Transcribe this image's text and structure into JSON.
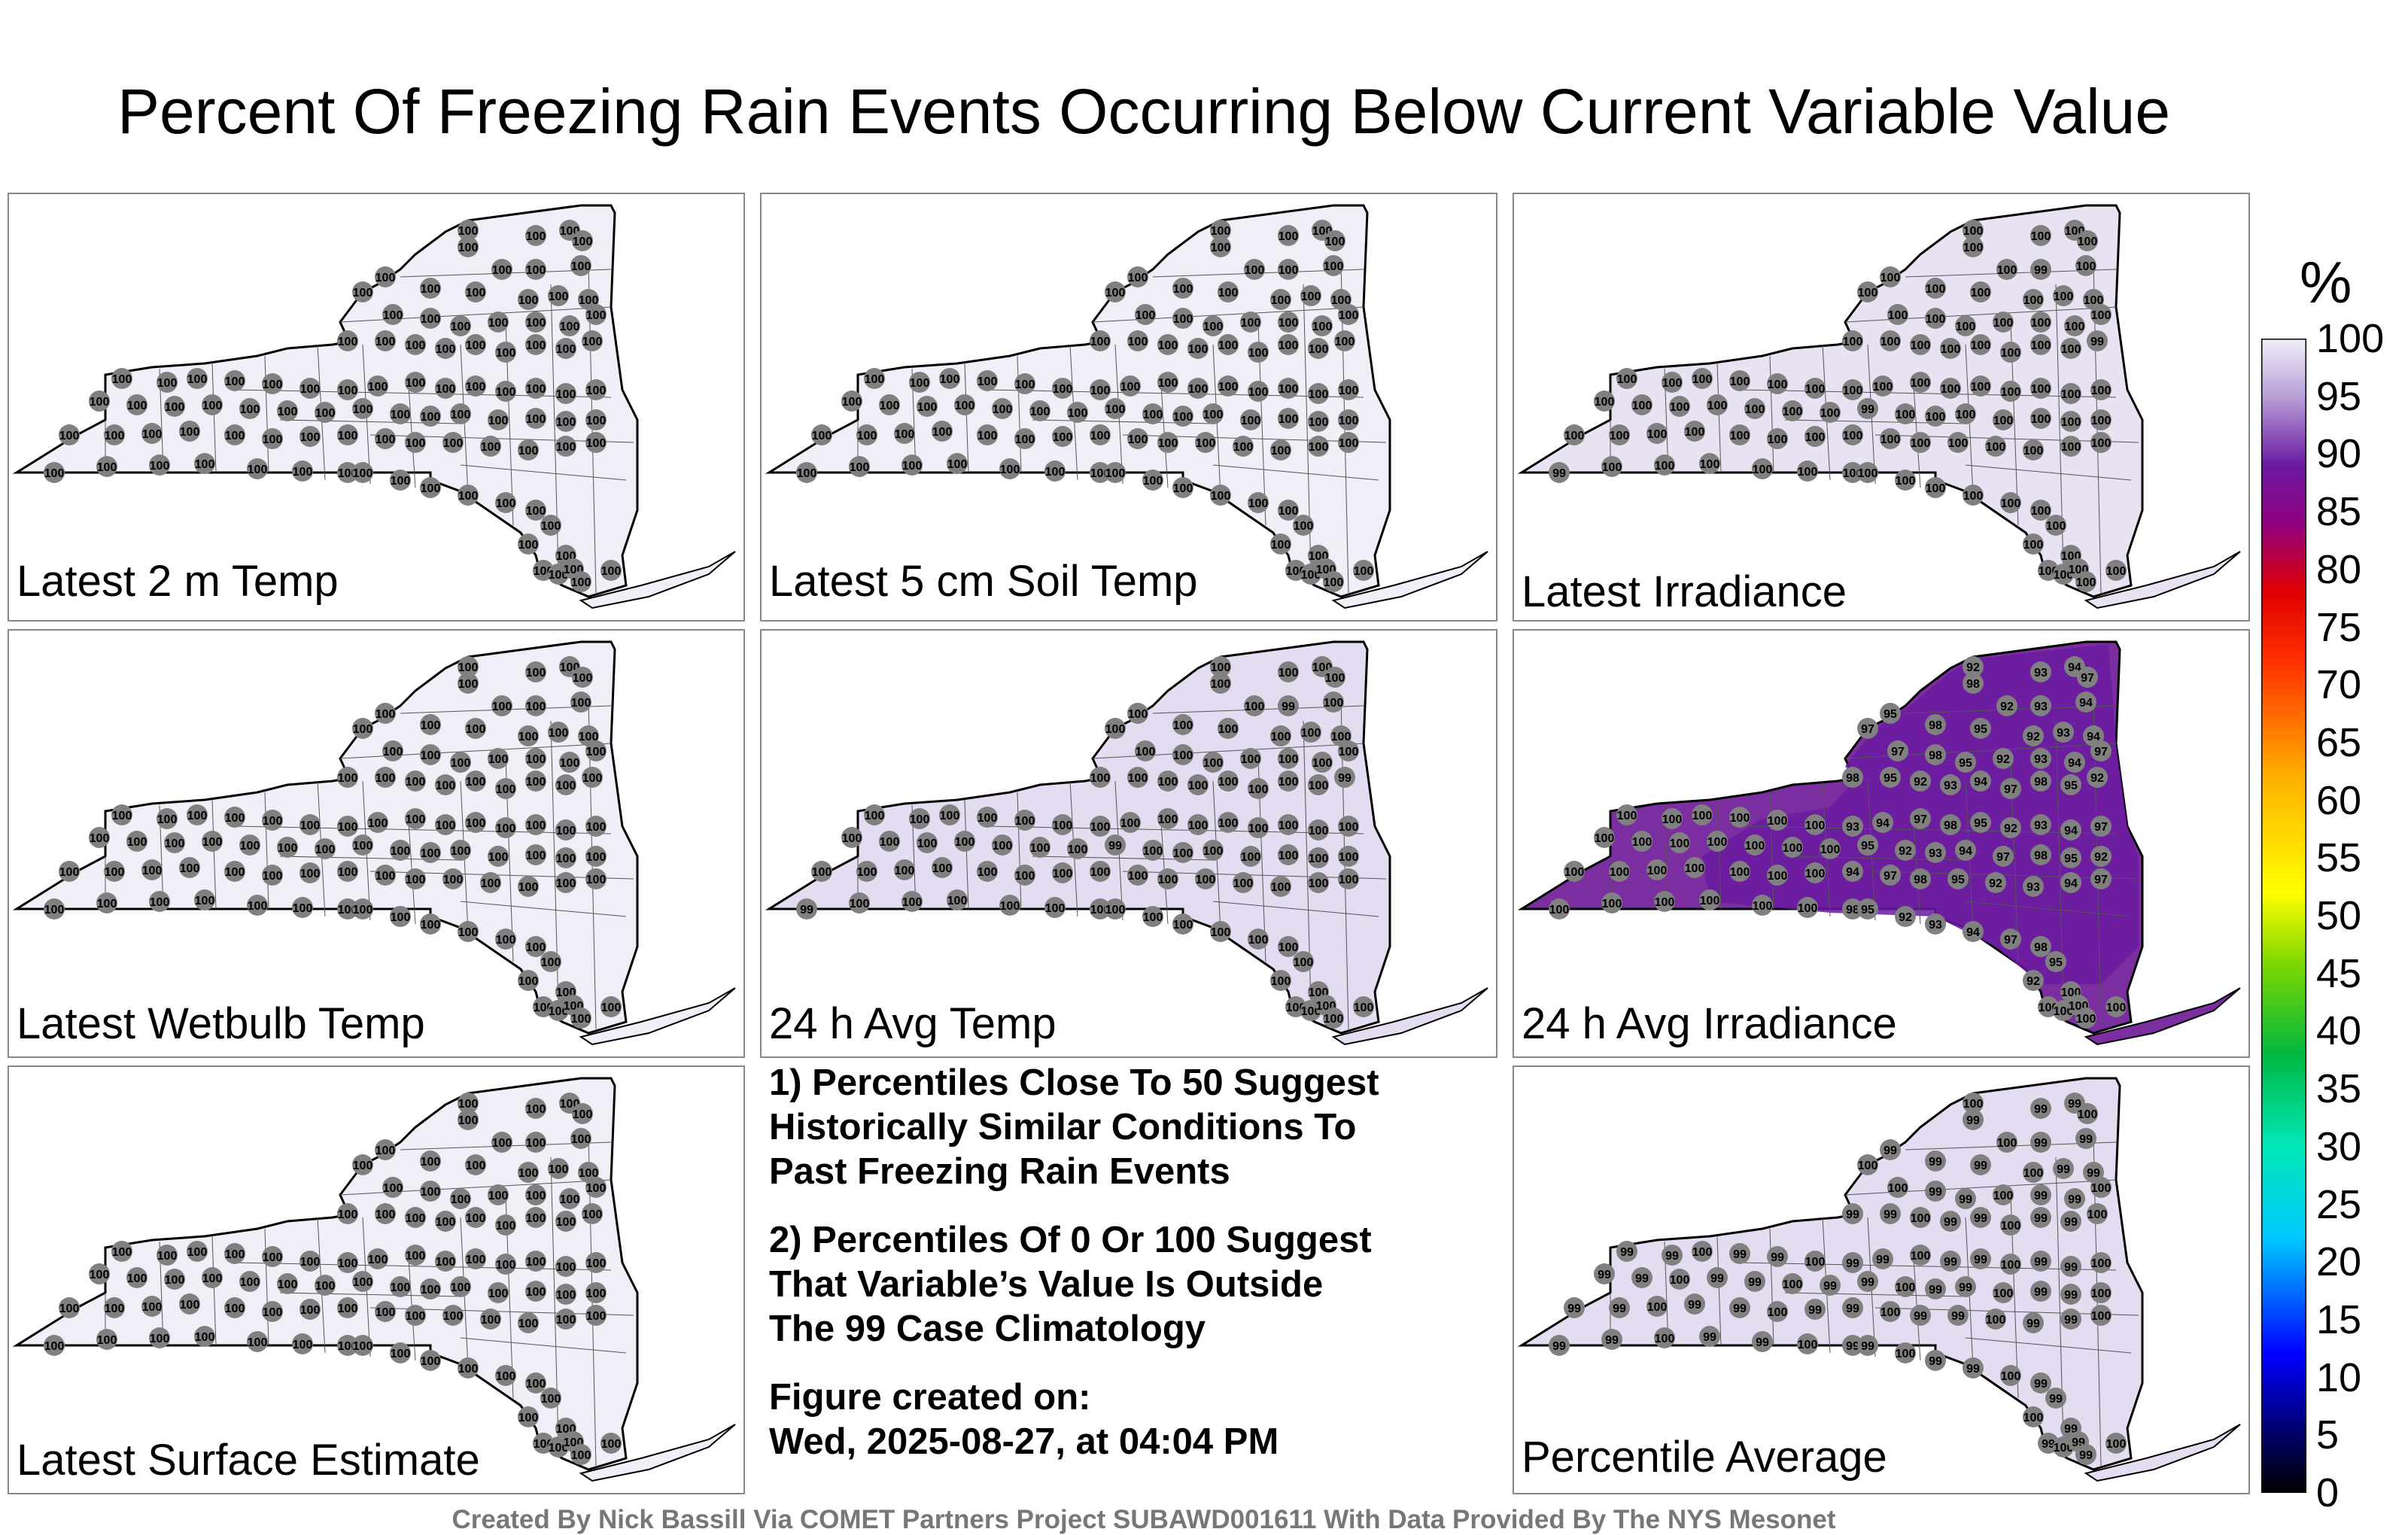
{
  "title": "Percent Of Freezing Rain Events Occurring Below Current Variable Value",
  "panels": [
    {
      "label": "Latest 2 m Temp",
      "fill": "#f1eef7",
      "values": "uniform-100"
    },
    {
      "label": "Latest 5 cm Soil Temp",
      "fill": "#f1eef7",
      "values": "uniform-100"
    },
    {
      "label": "Latest Irradiance",
      "fill": "#e8e2f2",
      "values": "mostly-100"
    },
    {
      "label": "Latest Wetbulb Temp",
      "fill": "#f1eef7",
      "values": "uniform-100"
    },
    {
      "label": "24 h Avg Temp",
      "fill": "#e4dcf0",
      "values": "mostly-100"
    },
    {
      "label": "24 h Avg Irradiance",
      "fill": "#7a2ea0",
      "values": "mixed-92-100"
    },
    {
      "label": "Latest Surface Estimate",
      "fill": "#f1eef7",
      "values": "uniform-100"
    },
    {
      "label": "Percentile Average",
      "fill": "#e4dcf0",
      "values": "mixed-99-100"
    }
  ],
  "notes": {
    "n1_line1": "1) Percentiles Close To 50 Suggest",
    "n1_line2": "Historically Similar Conditions To",
    "n1_line3": "Past Freezing Rain Events",
    "n2_line1": "2) Percentiles Of 0 Or 100 Suggest",
    "n2_line2": "That Variable’s Value Is Outside",
    "n2_line3": "The 99 Case Climatology",
    "n3_line1": "Figure created on:",
    "n3_line2": "Wed, 2025-08-27, at 04:04 PM"
  },
  "colorbar": {
    "unit": "%",
    "ticks": [
      "100",
      "95",
      "90",
      "85",
      "80",
      "75",
      "70",
      "65",
      "60",
      "55",
      "50",
      "45",
      "40",
      "35",
      "30",
      "25",
      "20",
      "15",
      "10",
      "5",
      "0"
    ]
  },
  "footer": "Created By Nick Bassill Via COMET Partners Project SUBAWD001611 With Data Provided By The NYS Mesonet"
}
